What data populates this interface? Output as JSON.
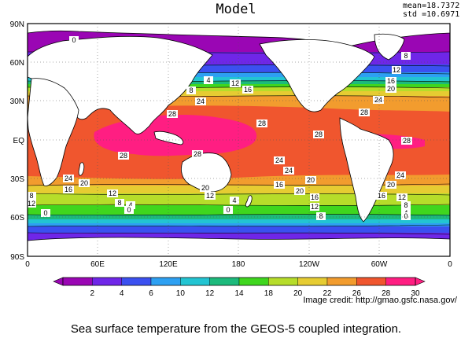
{
  "header": {
    "title": "Model",
    "mean": "mean=18.7372",
    "std": "std =10.6971"
  },
  "axes": {
    "lat_ticks": [
      "90N",
      "60N",
      "30N",
      "EQ",
      "30S",
      "60S",
      "90S"
    ],
    "lon_ticks": [
      "0",
      "60E",
      "120E",
      "180",
      "120W",
      "60W",
      "0"
    ]
  },
  "colorbar": {
    "labels": [
      "2",
      "4",
      "6",
      "10",
      "12",
      "14",
      "18",
      "20",
      "22",
      "26",
      "28",
      "30"
    ],
    "colors": [
      "#9a06b4",
      "#6f26e8",
      "#3b50f0",
      "#2da0f2",
      "#22c4d2",
      "#1cba7c",
      "#3fd61e",
      "#b6dd2a",
      "#e6cc32",
      "#f29c2e",
      "#f0562e",
      "#ff1e82"
    ]
  },
  "contour_labels": [
    "0",
    "4",
    "8",
    "12",
    "16",
    "24",
    "28",
    "28",
    "28",
    "28",
    "28",
    "24",
    "20",
    "20",
    "16",
    "12",
    "12",
    "8",
    "4",
    "0",
    "0",
    "8",
    "12",
    "16",
    "20",
    "24",
    "24",
    "20",
    "16",
    "12",
    "8",
    "4",
    "0",
    "28",
    "24",
    "20",
    "16",
    "12",
    "8",
    "4",
    "0",
    "28",
    "24",
    "20",
    "16",
    "12",
    "8",
    "4",
    "0"
  ],
  "credit": "Image credit: http://gmao.gsfc.nasa.gov/",
  "caption": "Sea surface temperature from the GEOS-5 coupled integration."
}
